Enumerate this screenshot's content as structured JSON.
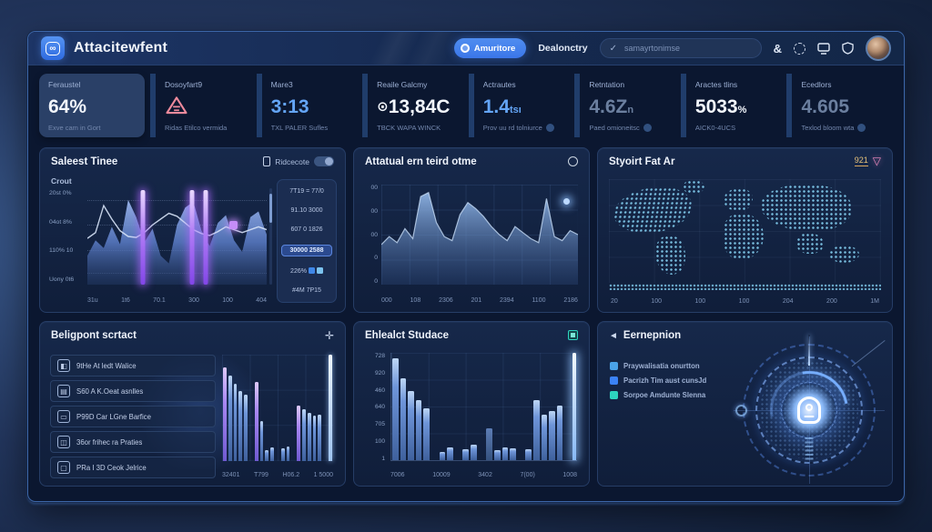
{
  "header": {
    "title": "Attacitewfent",
    "logo_glyph": "∞",
    "primary_button_label": "Amuritore",
    "nav_label": "Dealonctry",
    "search_placeholder": "samayrtonimse",
    "search_icon_glyph": "✓",
    "link_icon_glyph": "&"
  },
  "colors": {
    "accent": "#3b82f6",
    "purple": "#a78bfa",
    "teal": "#2dd4bf",
    "warning": "#ee8a9c",
    "badge": "#e6c27a"
  },
  "kpis": [
    {
      "label": "Feraustel",
      "value": "64%",
      "sub": "Exve cam in Gort"
    },
    {
      "label": "Dosoyfart9",
      "value": "",
      "sub": "Ridas Etilco vermida"
    },
    {
      "label": "Mare3",
      "value": "3:13",
      "sub": "TXL PALER Sufles"
    },
    {
      "label": "Reaile Galcmy",
      "value_prefix": "⊙",
      "value": "13,84C",
      "sub": "TBCK WAPA WINCK"
    },
    {
      "label": "Actrautes",
      "value": "1.4",
      "value_suffix": "tsı",
      "sub": "Prov uu rd tolniurce"
    },
    {
      "label": "Retntation",
      "value": "4.6Z",
      "value_suffix": "n",
      "sub": "Paed omioneitsc"
    },
    {
      "label": "Aractes tlins",
      "value": "5033",
      "value_suffix": "%",
      "sub": "AICK0-4UCS"
    },
    {
      "label": "Ecedlors",
      "value": "4.605",
      "sub": "Texlod bloom wta"
    }
  ],
  "chart_data": [
    {
      "id": "select-tinee",
      "type": "area+line+glowbars",
      "title": "Saleest Tinee",
      "subtitle": "Crout",
      "toggle_label": "Ridcecote",
      "yticks": [
        "20st 0%",
        "04ot 8%",
        "110% 10",
        "Uony 0t6"
      ],
      "xticks": [
        "31u",
        "1t6",
        "70.1",
        "300",
        "100",
        "404"
      ],
      "area": [
        30,
        46,
        38,
        60,
        42,
        88,
        70,
        44,
        58,
        30,
        22,
        62,
        80,
        86,
        56,
        40,
        64,
        72,
        46,
        34,
        70,
        76,
        52
      ],
      "line": [
        48,
        54,
        82,
        68,
        56,
        50,
        49,
        54,
        62,
        68,
        74,
        71,
        64,
        57,
        53,
        51,
        55,
        60,
        57,
        54,
        57,
        60,
        57
      ],
      "glow_bars": [
        0.31,
        0.585,
        0.66
      ],
      "side_list": [
        "7T19 = 77/0",
        "91.10 3000",
        "607 0 1826",
        "30000 2588",
        "226%",
        "#4M 7P15"
      ],
      "side_highlight_index": 3
    },
    {
      "id": "attatual",
      "type": "area",
      "title": "Attatual ern teird otme",
      "yticks": [
        "00",
        "00",
        "00",
        "0",
        "0"
      ],
      "xticks": [
        "000",
        "108",
        "2306",
        "201",
        "2394",
        "1100",
        "2186"
      ],
      "values": [
        40,
        48,
        42,
        56,
        46,
        88,
        92,
        62,
        48,
        44,
        70,
        82,
        76,
        68,
        58,
        50,
        44,
        58,
        52,
        46,
        42,
        86,
        48,
        44,
        54,
        50
      ]
    },
    {
      "id": "styoirt-map",
      "type": "map",
      "title": "Styoirt Fat Ar",
      "badge": "921",
      "xticks": [
        "20",
        "100",
        "100",
        "100",
        "204",
        "200",
        "1M"
      ]
    },
    {
      "id": "beligpont",
      "type": "bar",
      "title": "Beligpont scrtact",
      "items": [
        {
          "glyph": "◧",
          "label": "9tHe At ledt Walice"
        },
        {
          "glyph": "▤",
          "label": "S60 A K.Oeat asnlles"
        },
        {
          "glyph": "▭",
          "label": "P99D Car LGne Barfice"
        },
        {
          "glyph": "◫",
          "label": "36or frihec ra Praties"
        },
        {
          "glyph": "▢",
          "label": "PRa I 3D Ceok Jelrice"
        }
      ],
      "xticks": [
        "32401",
        "T799",
        "H06.2",
        "1 5000"
      ],
      "bars": [
        {
          "v": 88,
          "c": "purple"
        },
        {
          "v": 80,
          "c": "blue"
        },
        {
          "v": 73,
          "c": "blue"
        },
        {
          "v": 66,
          "c": "blue"
        },
        {
          "v": 62,
          "c": "blue"
        },
        {
          "v": 0,
          "c": "blue"
        },
        {
          "v": 74,
          "c": "purple"
        },
        {
          "v": 38,
          "c": "blue"
        },
        {
          "v": 10,
          "c": "blue"
        },
        {
          "v": 13,
          "c": "blue"
        },
        {
          "v": 0,
          "c": "blue"
        },
        {
          "v": 12,
          "c": "blue"
        },
        {
          "v": 14,
          "c": "blue"
        },
        {
          "v": 0,
          "c": "blue"
        },
        {
          "v": 52,
          "c": "purple"
        },
        {
          "v": 49,
          "c": "blue"
        },
        {
          "v": 45,
          "c": "blue"
        },
        {
          "v": 43,
          "c": "blue"
        },
        {
          "v": 44,
          "c": "blue"
        },
        {
          "v": 0,
          "c": "blue"
        },
        {
          "v": 100,
          "c": "light"
        }
      ]
    },
    {
      "id": "ehlealct",
      "type": "bar",
      "title": "Ehlealct Studace",
      "yticks": [
        "728",
        "920",
        "460",
        "640",
        "705",
        "100",
        "1"
      ],
      "xticks": [
        "7006",
        "10009",
        "3402",
        "7(00)",
        "1008"
      ],
      "bars": [
        {
          "v": 95,
          "c": "blue"
        },
        {
          "v": 76,
          "c": "blue"
        },
        {
          "v": 64,
          "c": "blue"
        },
        {
          "v": 56,
          "c": "blue"
        },
        {
          "v": 48,
          "c": "blue"
        },
        {
          "v": 0,
          "c": "blue"
        },
        {
          "v": 8,
          "c": "blue"
        },
        {
          "v": 12,
          "c": "blue"
        },
        {
          "v": 0,
          "c": "blue"
        },
        {
          "v": 10,
          "c": "blue"
        },
        {
          "v": 14,
          "c": "blue"
        },
        {
          "v": 0,
          "c": "blue"
        },
        {
          "v": 30,
          "c": "mid"
        },
        {
          "v": 9,
          "c": "blue"
        },
        {
          "v": 12,
          "c": "blue"
        },
        {
          "v": 11,
          "c": "blue"
        },
        {
          "v": 0,
          "c": "blue"
        },
        {
          "v": 10,
          "c": "blue"
        },
        {
          "v": 56,
          "c": "blue"
        },
        {
          "v": 42,
          "c": "blue"
        },
        {
          "v": 46,
          "c": "blue"
        },
        {
          "v": 51,
          "c": "blue"
        },
        {
          "v": 0,
          "c": "blue"
        },
        {
          "v": 100,
          "c": "glow"
        }
      ]
    },
    {
      "id": "eernepnion",
      "type": "radar-shield",
      "title": "Eernepnion",
      "legend": [
        {
          "label": "Praywalisatia onurtton",
          "color": "#4aa3e8"
        },
        {
          "label": "Pacrizh Tim aust cunsJd",
          "color": "#3b82f6"
        },
        {
          "label": "Sorpoe Amdunte Slenna",
          "color": "#2dd4bf"
        }
      ]
    }
  ]
}
